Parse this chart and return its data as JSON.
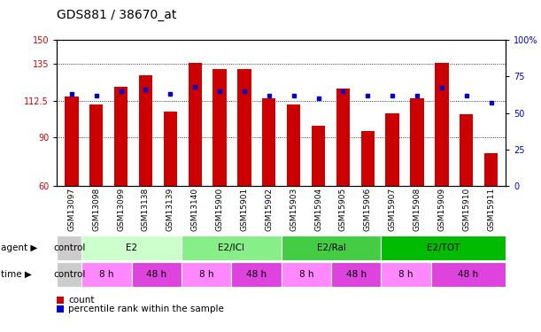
{
  "title": "GDS881 / 38670_at",
  "samples": [
    "GSM13097",
    "GSM13098",
    "GSM13099",
    "GSM13138",
    "GSM13139",
    "GSM13140",
    "GSM15900",
    "GSM15901",
    "GSM15902",
    "GSM15903",
    "GSM15904",
    "GSM15905",
    "GSM15906",
    "GSM15907",
    "GSM15908",
    "GSM15909",
    "GSM15910",
    "GSM15911"
  ],
  "counts": [
    115,
    110,
    121,
    128,
    106,
    136,
    132,
    132,
    114,
    110,
    97,
    120,
    94,
    105,
    114,
    136,
    104,
    80
  ],
  "percentiles": [
    63,
    62,
    65,
    66,
    63,
    68,
    65,
    65,
    62,
    62,
    60,
    65,
    62,
    62,
    62,
    67,
    62,
    57
  ],
  "ylim_left": [
    60,
    150
  ],
  "ylim_right": [
    0,
    100
  ],
  "yticks_left": [
    60,
    90,
    112.5,
    135,
    150
  ],
  "yticks_right": [
    0,
    25,
    50,
    75,
    100
  ],
  "bar_color": "#cc0000",
  "dot_color": "#0000cc",
  "bg_color": "#ffffff",
  "agent_groups": [
    {
      "label": "control",
      "start": 0,
      "end": 1,
      "color": "#cccccc"
    },
    {
      "label": "E2",
      "start": 1,
      "end": 5,
      "color": "#ccffcc"
    },
    {
      "label": "E2/ICI",
      "start": 5,
      "end": 9,
      "color": "#88ee88"
    },
    {
      "label": "E2/Ral",
      "start": 9,
      "end": 13,
      "color": "#44cc44"
    },
    {
      "label": "E2/TOT",
      "start": 13,
      "end": 18,
      "color": "#00bb00"
    }
  ],
  "time_groups": [
    {
      "label": "control",
      "start": 0,
      "end": 1,
      "color": "#cccccc"
    },
    {
      "label": "8 h",
      "start": 1,
      "end": 3,
      "color": "#ff88ff"
    },
    {
      "label": "48 h",
      "start": 3,
      "end": 5,
      "color": "#dd44dd"
    },
    {
      "label": "8 h",
      "start": 5,
      "end": 7,
      "color": "#ff88ff"
    },
    {
      "label": "48 h",
      "start": 7,
      "end": 9,
      "color": "#dd44dd"
    },
    {
      "label": "8 h",
      "start": 9,
      "end": 11,
      "color": "#ff88ff"
    },
    {
      "label": "48 h",
      "start": 11,
      "end": 13,
      "color": "#dd44dd"
    },
    {
      "label": "8 h",
      "start": 13,
      "end": 15,
      "color": "#ff88ff"
    },
    {
      "label": "48 h",
      "start": 15,
      "end": 18,
      "color": "#dd44dd"
    }
  ],
  "legend_count_color": "#cc0000",
  "legend_dot_color": "#0000cc",
  "title_fontsize": 10,
  "tick_fontsize": 7,
  "bar_width": 0.55
}
